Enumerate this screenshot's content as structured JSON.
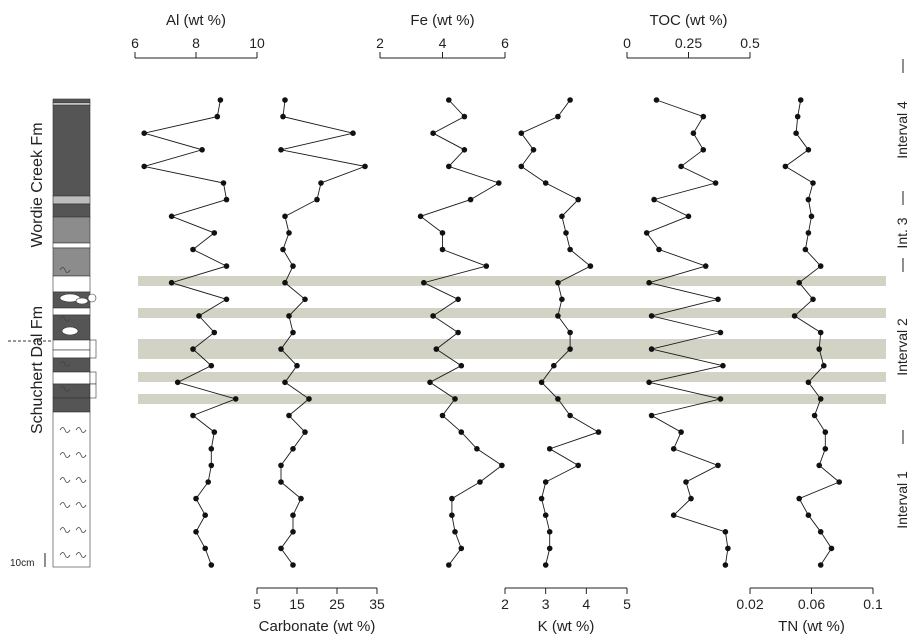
{
  "chart_data": {
    "type": "line",
    "depth_samples": 29,
    "panels": [
      {
        "name": "Al (wt %)",
        "axis": "top",
        "xlim": [
          6,
          10
        ],
        "ticks": [
          "6",
          "8",
          "10"
        ],
        "values": [
          8.8,
          8.7,
          6.3,
          8.2,
          6.3,
          8.9,
          9.0,
          7.2,
          8.6,
          7.9,
          9.0,
          7.2,
          9.0,
          8.1,
          8.6,
          7.9,
          8.5,
          7.4,
          9.3,
          7.9,
          8.6,
          8.5,
          8.5,
          8.4,
          8.0,
          8.3,
          8.0,
          8.3,
          8.5
        ]
      },
      {
        "name": "Carbonate (wt %)",
        "axis": "bottom",
        "xlim": [
          5,
          35
        ],
        "ticks": [
          "5",
          "15",
          "25",
          "35"
        ],
        "values": [
          12,
          11.5,
          29,
          11,
          32,
          21,
          20,
          12,
          13,
          11.5,
          14,
          12,
          17,
          13,
          14,
          11,
          15,
          12,
          18,
          13,
          17,
          14,
          11,
          11,
          16,
          14,
          14,
          11,
          14
        ]
      },
      {
        "name": "Fe (wt %)",
        "axis": "top",
        "xlim": [
          2,
          6
        ],
        "ticks": [
          "2",
          "4",
          "6"
        ],
        "values": [
          4.2,
          4.7,
          3.7,
          4.7,
          4.2,
          5.8,
          4.9,
          3.3,
          4.0,
          4.0,
          5.4,
          3.4,
          4.5,
          3.7,
          4.5,
          3.8,
          4.6,
          3.6,
          4.4,
          4.0,
          4.6,
          5.1,
          5.9,
          5.2,
          4.3,
          4.3,
          4.4,
          4.6,
          4.2
        ]
      },
      {
        "name": "K (wt %)",
        "axis": "bottom",
        "xlim": [
          2,
          5
        ],
        "ticks": [
          "2",
          "3",
          "4",
          "5"
        ],
        "values": [
          3.6,
          3.3,
          2.4,
          2.7,
          2.4,
          3.0,
          3.8,
          3.4,
          3.5,
          3.6,
          4.1,
          3.3,
          3.4,
          3.3,
          3.6,
          3.6,
          3.2,
          2.9,
          3.3,
          3.6,
          4.3,
          3.1,
          3.8,
          3.0,
          2.9,
          3.0,
          3.1,
          3.1,
          3.0
        ]
      },
      {
        "name": "TOC (wt %)",
        "axis": "top",
        "xlim": [
          0,
          0.5
        ],
        "ticks": [
          "0",
          "0.25",
          "0.5"
        ],
        "values": [
          0.12,
          0.31,
          0.27,
          0.31,
          0.22,
          0.36,
          0.11,
          0.25,
          0.08,
          0.13,
          0.32,
          0.09,
          0.37,
          0.1,
          0.38,
          0.1,
          0.39,
          0.09,
          0.38,
          0.1,
          0.22,
          0.19,
          0.37,
          0.24,
          0.26,
          0.19,
          0.4,
          0.41,
          0.4
        ]
      },
      {
        "name": "TN (wt %)",
        "axis": "bottom",
        "xlim": [
          0.02,
          0.1
        ],
        "ticks": [
          "0.02",
          "0.06",
          "0.1"
        ],
        "values": [
          0.053,
          0.051,
          0.05,
          0.058,
          0.043,
          0.061,
          0.058,
          0.06,
          0.058,
          0.056,
          0.066,
          0.052,
          0.061,
          0.049,
          0.066,
          0.065,
          0.068,
          0.058,
          0.066,
          0.062,
          0.069,
          0.069,
          0.065,
          0.078,
          0.052,
          0.058,
          0.066,
          0.073,
          0.066
        ]
      }
    ],
    "formations": [
      "Wordie Creek Fm",
      "Schuchert Dal Fm"
    ],
    "intervals": [
      "Interval 4",
      "Int. 3",
      "Interval 2",
      "Interval 1"
    ],
    "scale_label": "10cm",
    "grid": false
  }
}
